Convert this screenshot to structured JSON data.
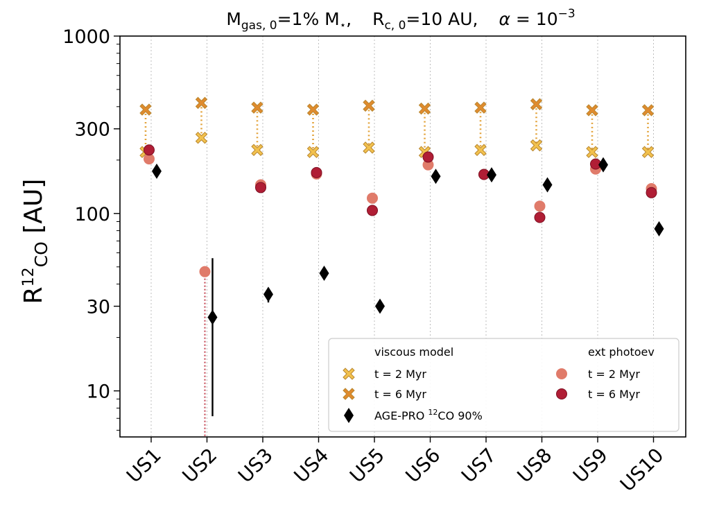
{
  "chart_data": {
    "type": "scatter",
    "title": "M_gas,0=1% M⋆,   R_c,0=10 AU,   α=10^−3",
    "title_parts": {
      "p1_main": "M",
      "p1_sub": "gas, 0",
      "p1_rest": "=1% M",
      "p1_star": "⋆",
      "p1_end": ",",
      "p2_main": "R",
      "p2_sub": "c, 0",
      "p2_rest": "=10 AU,",
      "p3_alpha": "α",
      "p3_eq": " = 10",
      "p3_sup": "−3"
    },
    "ylabel": "R12CO [AU]",
    "ylabel_parts": {
      "main": "R",
      "sup": "12",
      "sub": "CO",
      "rest": " [AU]"
    },
    "yscale": "log",
    "ylim": [
      5.5,
      1000
    ],
    "yticks": [
      10,
      30,
      100,
      300,
      1000
    ],
    "ytick_labels": [
      "10",
      "30",
      "100",
      "300",
      "1000"
    ],
    "grid": "vertical dotted at categories",
    "categories": [
      "US1",
      "US2",
      "US3",
      "US4",
      "US5",
      "US6",
      "US7",
      "US8",
      "US9",
      "US10"
    ],
    "series": [
      {
        "name": "t = 2 Myr",
        "group": "viscous model",
        "marker": "X",
        "color": "#f2c14e",
        "values": [
          222,
          267,
          228,
          222,
          235,
          222,
          228,
          242,
          222,
          222
        ]
      },
      {
        "name": "t = 6 Myr",
        "group": "viscous model",
        "marker": "X",
        "color": "#e08b2e",
        "values": [
          385,
          420,
          395,
          385,
          405,
          390,
          395,
          413,
          382,
          382
        ]
      },
      {
        "name": "t = 2 Myr",
        "group": "ext photoev",
        "marker": "o",
        "color": "#e07b6a",
        "values": [
          203,
          47,
          145,
          167,
          122,
          188,
          166,
          110,
          178,
          138
        ]
      },
      {
        "name": "t = 6 Myr",
        "group": "ext photoev",
        "marker": "o",
        "color": "#b01e35",
        "values": [
          228,
          null,
          140,
          170,
          104,
          208,
          166,
          95,
          190,
          131
        ]
      },
      {
        "name": "AGE-PRO 12CO 90%",
        "marker": "d",
        "color": "#000000",
        "values": [
          173,
          26,
          35,
          46,
          30,
          162,
          165,
          145,
          188,
          82
        ],
        "yerr_low": [
          null,
          7.2,
          31.5,
          null,
          null,
          null,
          null,
          null,
          null,
          null
        ],
        "yerr_high": [
          null,
          56,
          38,
          null,
          null,
          null,
          null,
          null,
          null,
          null
        ]
      }
    ],
    "connectors": {
      "US2_photoev_to_axis": true
    },
    "legend": {
      "position": "lower-right",
      "col1_header": "viscous model",
      "col2_header": "ext photoev",
      "item_viscous_2": "t = 2 Myr",
      "item_viscous_6": "t = 6 Myr",
      "item_photoev_2": "t = 2 Myr",
      "item_photoev_6": "t = 6 Myr",
      "item_agepro_pre": "AGE-PRO ",
      "item_agepro_sup": "12",
      "item_agepro_post": "CO 90%"
    }
  }
}
